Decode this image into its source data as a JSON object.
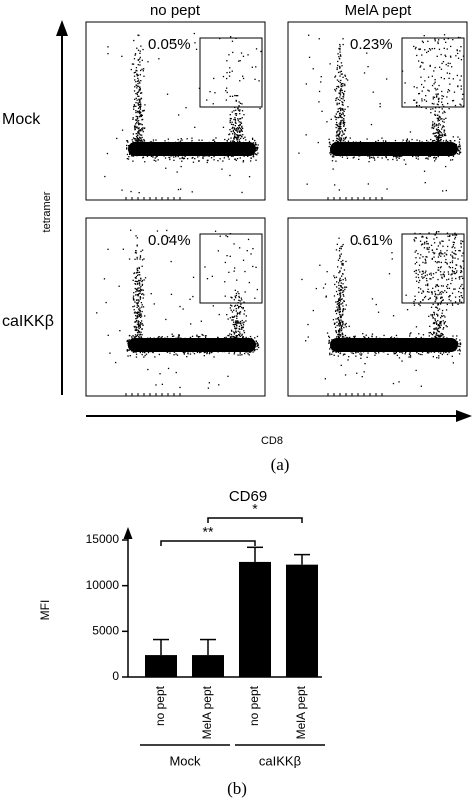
{
  "panel_a": {
    "columns": [
      "no pept",
      "MelA pept"
    ],
    "rows": [
      "Mock",
      "caIKKβ"
    ],
    "y_label": "tetramer",
    "x_label": "CD8",
    "percentages": [
      [
        "0.05%",
        "0.23%"
      ],
      [
        "0.04%",
        "0.61%"
      ]
    ],
    "caption": "(a)"
  },
  "chart_data": {
    "type": "bar",
    "title": "CD69",
    "y_label": "MFI",
    "categories": [
      "no pept",
      "MelA pept",
      "no pept",
      "MelA pept"
    ],
    "values": [
      2400,
      2400,
      12600,
      12300
    ],
    "errors": [
      1700,
      1700,
      1600,
      1100
    ],
    "color": "#000000",
    "ylim": [
      0,
      15000
    ],
    "yticks": [
      0,
      5000,
      10000,
      15000
    ],
    "groups": [
      "Mock",
      "caIKKβ"
    ],
    "significance": [
      "**",
      "*"
    ]
  },
  "caption_b": "(b)"
}
